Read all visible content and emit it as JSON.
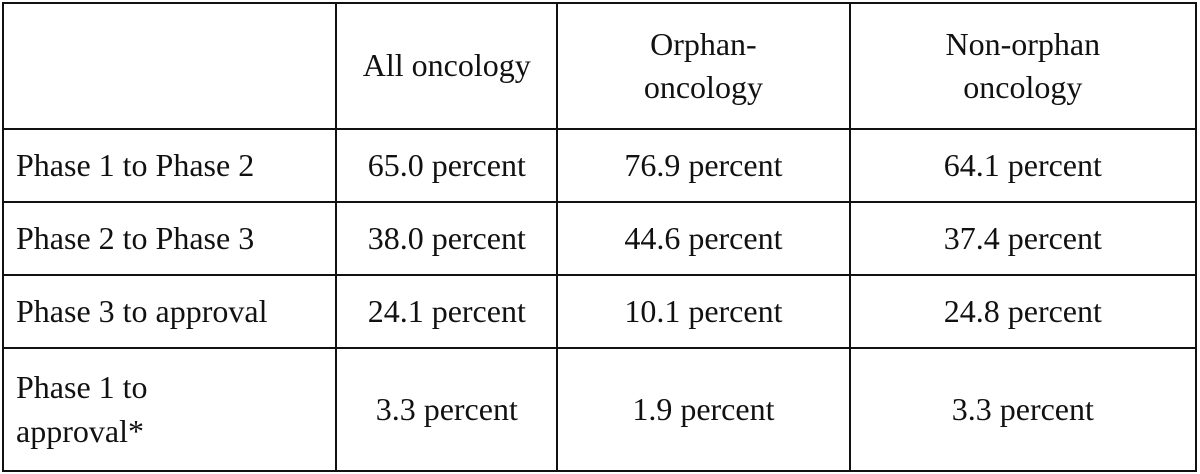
{
  "table": {
    "columns": [
      "All oncology",
      "Orphan-oncology",
      "Non-orphan oncology"
    ],
    "rows": [
      {
        "label": "Phase 1 to Phase 2",
        "cells": [
          "65.0 percent",
          "76.9 percent",
          "64.1 percent"
        ]
      },
      {
        "label": "Phase 2 to Phase 3",
        "cells": [
          "38.0 percent",
          "44.6 percent",
          "37.4 percent"
        ]
      },
      {
        "label": "Phase 3 to approval",
        "cells": [
          "24.1 percent",
          "10.1 percent",
          "24.8 percent"
        ]
      },
      {
        "label": "Phase 1 to approval*",
        "cells": [
          "3.3 percent",
          "1.9 percent",
          "3.3 percent"
        ]
      }
    ]
  }
}
